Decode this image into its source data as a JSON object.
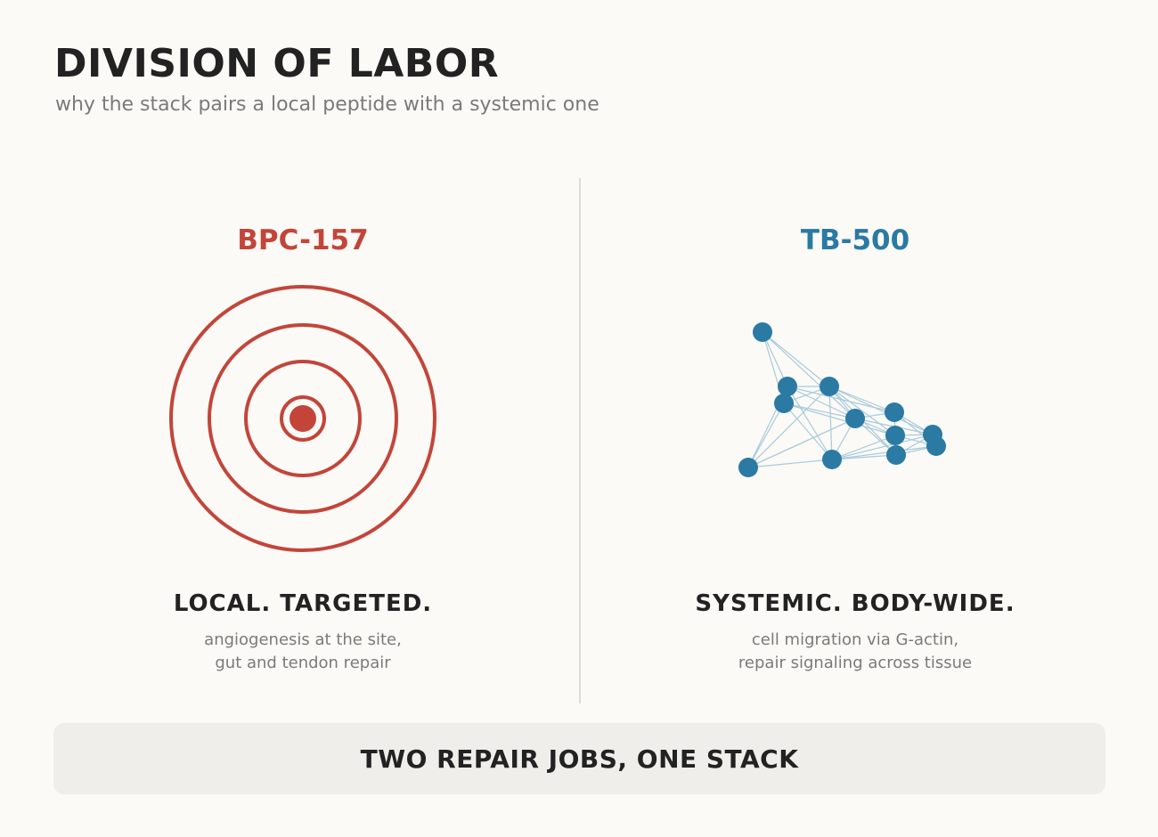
{
  "header": {
    "title": "DIVISION OF LABOR",
    "subtitle": "why the stack pairs a local peptide with a systemic one"
  },
  "left": {
    "name": "BPC-157",
    "heading": "LOCAL. TARGETED.",
    "desc_line1": "angiogenesis at the site,",
    "desc_line2": "gut and tendon repair",
    "color": "#c3453a",
    "icon": "target-rings-icon"
  },
  "right": {
    "name": "TB-500",
    "heading": "SYSTEMIC. BODY-WIDE.",
    "desc_line1": "cell migration via G-actin,",
    "desc_line2": "repair signaling across tissue",
    "node_color": "#2a7aa3",
    "edge_color": "#a9cadb",
    "icon": "network-nodes-icon"
  },
  "footer": {
    "banner": "TWO REPAIR JOBS, ONE STACK"
  },
  "colors": {
    "background": "#fbfaf6",
    "divider": "#dcdcdc",
    "banner_bg": "#efeeea"
  }
}
